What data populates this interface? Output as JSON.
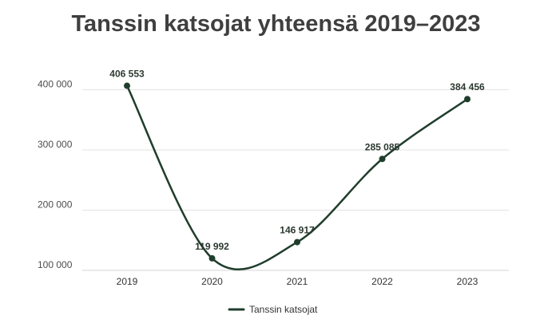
{
  "chart_data": {
    "type": "line",
    "title": "Tanssin katsojat yhteensä 2019–2023",
    "categories": [
      "2019",
      "2020",
      "2021",
      "2022",
      "2023"
    ],
    "series": [
      {
        "name": "Tanssin katsojat",
        "values": [
          406553,
          119992,
          146917,
          285085,
          384456
        ],
        "labels": [
          "406 553",
          "119 992",
          "146 917",
          "285 085",
          "384 456"
        ],
        "color": "#203d2c"
      }
    ],
    "yticks": [
      {
        "value": 100000,
        "label": "100 000"
      },
      {
        "value": 200000,
        "label": "200 000"
      },
      {
        "value": 300000,
        "label": "300 000"
      },
      {
        "value": 400000,
        "label": "400 000"
      }
    ],
    "ylim": [
      100000,
      400000
    ],
    "xlabel": "",
    "ylabel": "",
    "grid": true,
    "legend": "bottom-center"
  }
}
